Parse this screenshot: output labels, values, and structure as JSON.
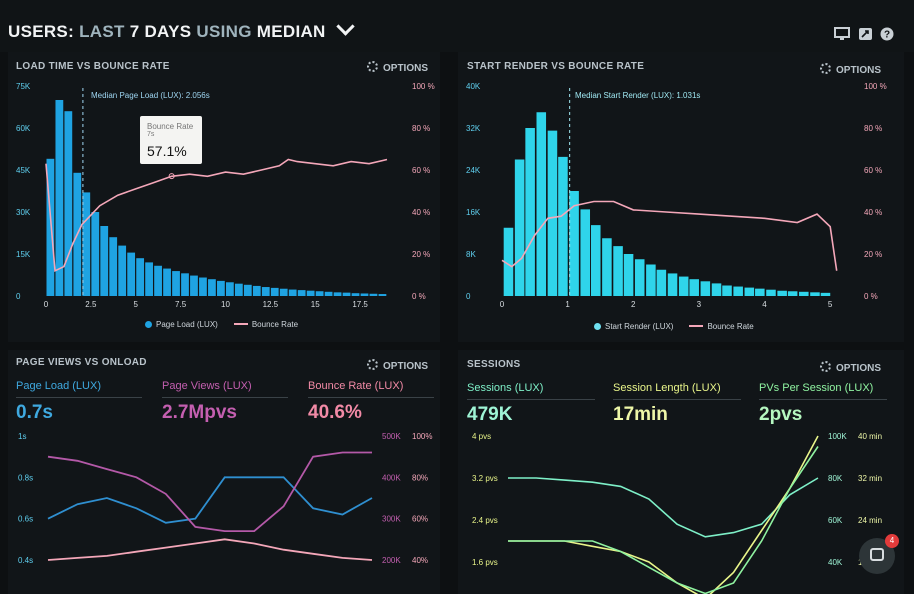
{
  "header": {
    "title_users": "USERS:",
    "title_last": "LAST",
    "title_days": "7 DAYS",
    "title_using": "USING",
    "title_median": "MEDIAN",
    "icons": [
      "monitor-icon",
      "share-icon",
      "help-icon"
    ]
  },
  "panel_load": {
    "title": "LOAD TIME VS BOUNCE RATE",
    "options": "OPTIONS",
    "median_label": "Median Page Load (LUX): 2.056s",
    "tooltip": {
      "label": "Bounce Rate",
      "sub": "7s",
      "value": "57.1%"
    },
    "legend": {
      "bars": "Page Load (LUX)",
      "line": "Bounce Rate"
    }
  },
  "panel_render": {
    "title": "START RENDER VS BOUNCE RATE",
    "options": "OPTIONS",
    "median_label": "Median Start Render (LUX): 1.031s",
    "legend": {
      "bars": "Start Render (LUX)",
      "line": "Bounce Rate"
    }
  },
  "panel_views": {
    "title": "PAGE VIEWS VS ONLOAD",
    "options": "OPTIONS",
    "metrics": [
      {
        "label": "Page Load (LUX)",
        "value": "0.7s",
        "color": "#3fa9e0"
      },
      {
        "label": "Page Views (LUX)",
        "value": "2.7Mpvs",
        "color": "#c45fb0"
      },
      {
        "label": "Bounce Rate (LUX)",
        "value": "40.6%",
        "color": "#f28aa6"
      }
    ]
  },
  "panel_sessions": {
    "title": "SESSIONS",
    "options": "OPTIONS",
    "metrics": [
      {
        "label": "Sessions (LUX)",
        "value": "479K",
        "color": "#7ef0c8"
      },
      {
        "label": "Session Length (LUX)",
        "value": "17min",
        "color": "#e9f58a"
      },
      {
        "label": "PVs Per Session (LUX)",
        "value": "2pvs",
        "color": "#8ff2a0"
      }
    ]
  },
  "chat": {
    "badge": "4"
  },
  "colors": {
    "bar": "#1fa3e2",
    "bar2": "#2fd4ea",
    "pink": "#f4a7b9",
    "magenta": "#c45fb0"
  },
  "chart_data": [
    {
      "type": "bar",
      "title": "LOAD TIME VS BOUNCE RATE",
      "x_ticks": [
        "0",
        "2.5",
        "5",
        "7.5",
        "10",
        "12.5",
        "15",
        "17.5"
      ],
      "y_left_ticks": [
        "0",
        "15K",
        "30K",
        "45K",
        "60K",
        "75K"
      ],
      "y_right_ticks": [
        "0 %",
        "20 %",
        "40 %",
        "60 %",
        "80 %",
        "100 %"
      ],
      "ylim": [
        0,
        75000
      ],
      "bin_width": 0.5,
      "x": [
        0,
        0.5,
        1,
        1.5,
        2,
        2.5,
        3,
        3.5,
        4,
        4.5,
        5,
        5.5,
        6,
        6.5,
        7,
        7.5,
        8,
        8.5,
        9,
        9.5,
        10,
        10.5,
        11,
        11.5,
        12,
        12.5,
        13,
        13.5,
        14,
        14.5,
        15,
        15.5,
        16,
        16.5,
        17,
        17.5,
        18,
        18.5
      ],
      "series": [
        {
          "name": "Page Load (LUX)",
          "values": [
            49000,
            70000,
            66000,
            44000,
            37000,
            30000,
            25000,
            21000,
            18000,
            15500,
            13500,
            12000,
            10800,
            9800,
            8900,
            8100,
            7300,
            6600,
            6000,
            5400,
            4900,
            4400,
            4000,
            3600,
            3200,
            2900,
            2600,
            2300,
            2100,
            1900,
            1700,
            1500,
            1300,
            1200,
            1000,
            900,
            800,
            700
          ]
        },
        {
          "name": "Bounce Rate",
          "x": [
            0,
            0.5,
            1,
            1.5,
            2,
            3,
            4,
            5,
            6,
            7,
            8,
            9,
            10,
            11,
            12,
            13,
            13.5,
            14,
            15,
            16,
            17,
            18,
            19
          ],
          "values": [
            63,
            12,
            14,
            25,
            34,
            43,
            48,
            51,
            54,
            57,
            58,
            57,
            59,
            58,
            60,
            62,
            65,
            64,
            63,
            62,
            64,
            63,
            65
          ]
        }
      ]
    },
    {
      "type": "bar",
      "title": "START RENDER VS BOUNCE RATE",
      "x_ticks": [
        "0",
        "1",
        "2",
        "3",
        "4",
        "5"
      ],
      "y_left_ticks": [
        "0",
        "8K",
        "16K",
        "24K",
        "32K",
        "40K"
      ],
      "y_right_ticks": [
        "0 %",
        "20 %",
        "40 %",
        "60 %",
        "80 %",
        "100 %"
      ],
      "ylim": [
        0,
        40000
      ],
      "bin_width": 0.1667,
      "x": [
        0.1,
        0.27,
        0.43,
        0.6,
        0.77,
        0.93,
        1.1,
        1.27,
        1.43,
        1.6,
        1.77,
        1.93,
        2.1,
        2.27,
        2.43,
        2.6,
        2.77,
        2.93,
        3.1,
        3.27,
        3.43,
        3.6,
        3.77,
        3.93,
        4.1,
        4.27,
        4.43,
        4.6,
        4.77,
        4.93
      ],
      "series": [
        {
          "name": "Start Render (LUX)",
          "values": [
            13000,
            26000,
            32000,
            35000,
            31500,
            26500,
            20000,
            16500,
            13500,
            11000,
            9500,
            8000,
            7000,
            6000,
            5000,
            4300,
            3700,
            3200,
            2800,
            2400,
            2000,
            1800,
            1600,
            1400,
            1200,
            1000,
            900,
            800,
            700,
            600
          ]
        },
        {
          "name": "Bounce Rate",
          "x": [
            0,
            0.15,
            0.3,
            0.5,
            0.7,
            0.9,
            1.1,
            1.4,
            1.7,
            2,
            2.5,
            3,
            3.5,
            4,
            4.5,
            4.8,
            5,
            5.1
          ],
          "values": [
            17,
            14,
            18,
            29,
            37,
            38,
            43,
            45,
            45,
            41,
            40,
            39,
            38,
            37,
            35,
            39,
            33,
            12
          ]
        }
      ]
    },
    {
      "type": "line",
      "title": "PAGE VIEWS VS ONLOAD",
      "y_left_ticks": [
        "0.4s",
        "0.6s",
        "0.8s",
        "1s"
      ],
      "y_right1_ticks": [
        "200K",
        "300K",
        "400K",
        "500K"
      ],
      "y_right2_ticks": [
        "40%",
        "60%",
        "80%",
        "100%"
      ],
      "series": [
        {
          "name": "Page Load (LUX)",
          "axis": "left",
          "values": [
            0.6,
            0.67,
            0.7,
            0.65,
            0.58,
            0.6,
            0.8,
            0.8,
            0.8,
            0.65,
            0.62,
            0.7
          ]
        },
        {
          "name": "Page Views (LUX)",
          "axis": "right1",
          "values": [
            450000,
            440000,
            420000,
            400000,
            360000,
            280000,
            270000,
            270000,
            330000,
            450000,
            460000,
            460000
          ]
        },
        {
          "name": "Bounce Rate (LUX)",
          "axis": "right2",
          "values": [
            40,
            41,
            42,
            44,
            46,
            48,
            50,
            48,
            45,
            43,
            41,
            40
          ]
        }
      ]
    },
    {
      "type": "line",
      "title": "SESSIONS",
      "y_left_ticks": [
        "1.6 pvs",
        "2.4 pvs",
        "3.2 pvs",
        "4 pvs"
      ],
      "y_right1_ticks": [
        "40K",
        "60K",
        "80K",
        "100K"
      ],
      "y_right2_ticks": [
        "16 min",
        "24 min",
        "32 min",
        "40 min"
      ],
      "series": [
        {
          "name": "Sessions (LUX)",
          "axis": "right1",
          "values": [
            80000,
            80000,
            79000,
            78000,
            76000,
            70000,
            58000,
            52000,
            54000,
            58000,
            72000,
            80000
          ]
        },
        {
          "name": "Session Length (LUX)",
          "axis": "right2",
          "values": [
            20,
            20,
            20,
            19,
            18,
            16,
            12,
            9,
            14,
            22,
            30,
            40
          ]
        },
        {
          "name": "PVs Per Session (LUX)",
          "axis": "left",
          "values": [
            2.0,
            2.0,
            2.0,
            2.0,
            1.8,
            1.5,
            1.2,
            1.0,
            1.2,
            2.0,
            3.0,
            3.8
          ]
        }
      ]
    }
  ]
}
